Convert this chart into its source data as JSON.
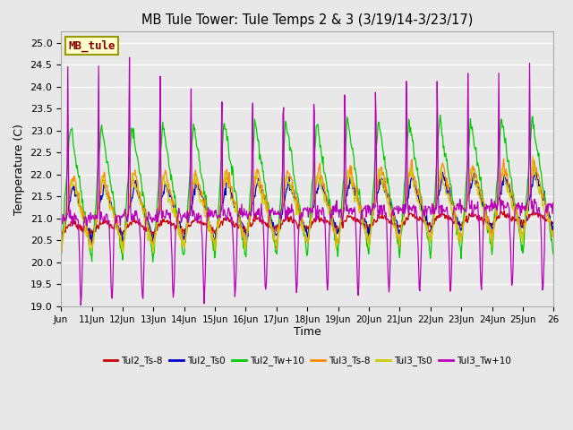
{
  "title": "MB Tule Tower: Tule Temps 2 & 3 (3/19/14-3/23/17)",
  "xlabel": "Time",
  "ylabel": "Temperature (C)",
  "ylim": [
    19.0,
    25.25
  ],
  "yticks": [
    19.0,
    19.5,
    20.0,
    20.5,
    21.0,
    21.5,
    22.0,
    22.5,
    23.0,
    23.5,
    24.0,
    24.5,
    25.0
  ],
  "xtick_labels": [
    "Jun",
    "11Jun",
    "12Jun",
    "13Jun",
    "14Jun",
    "15Jun",
    "16Jun",
    "17Jun",
    "18Jun",
    "19Jun",
    "20Jun",
    "21Jun",
    "22Jun",
    "23Jun",
    "24Jun",
    "25Jun",
    "26"
  ],
  "bg_color": "#e8e8e8",
  "legend_labels": [
    "Tul2_Ts-8",
    "Tul2_Ts0",
    "Tul2_Tw+10",
    "Tul3_Ts-8",
    "Tul3_Ts0",
    "Tul3_Tw+10"
  ],
  "line_colors": [
    "#cc0000",
    "#0000cc",
    "#00cc00",
    "#ff8800",
    "#cccc00",
    "#bb00bb"
  ],
  "annotation_text": "MB_tule",
  "annotation_color": "#880000",
  "annotation_bg": "#ffffcc",
  "annotation_border": "#999900"
}
